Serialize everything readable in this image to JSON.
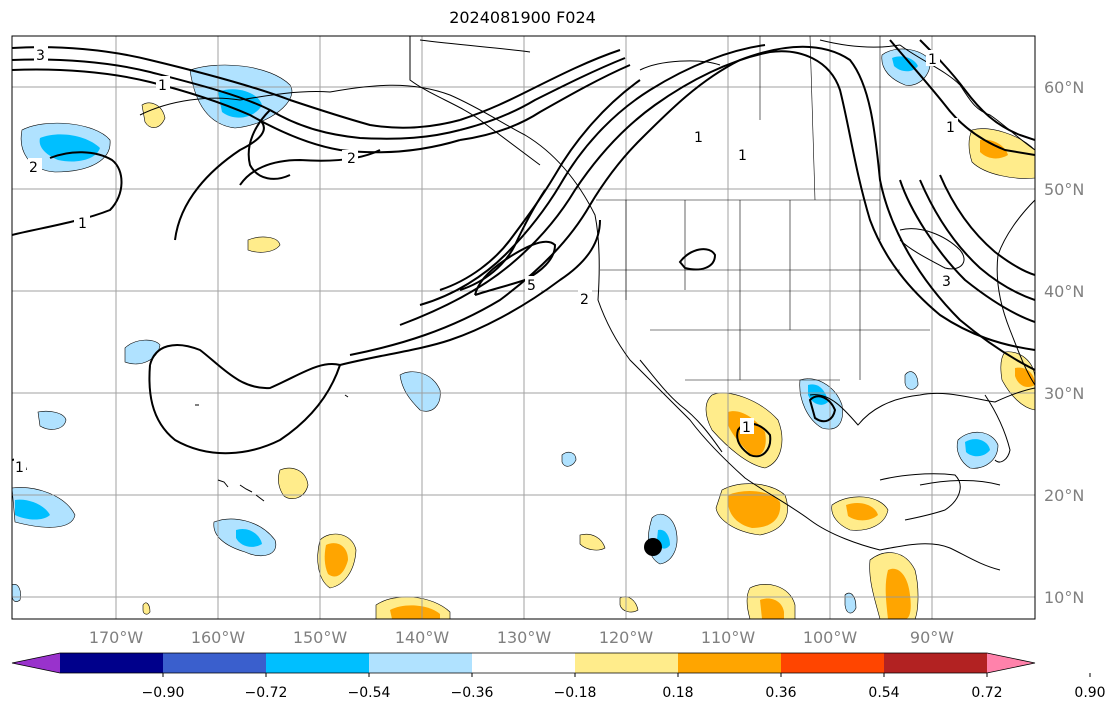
{
  "title": "2024081900 F024",
  "lon_labels": [
    "170°W",
    "160°W",
    "150°W",
    "140°W",
    "130°W",
    "120°W",
    "110°W",
    "100°W",
    "90°W"
  ],
  "lat_labels": [
    "60°N",
    "50°N",
    "40°N",
    "30°N",
    "20°N",
    "10°N"
  ],
  "colorbar": {
    "colors": [
      "#9932cc",
      "#00008b",
      "#3a5fcd",
      "#00bfff",
      "#b0e2ff",
      "#ffffff",
      "#ffec8b",
      "#ffa500",
      "#ff4500",
      "#b22222",
      "#ff82ab"
    ],
    "tick_labels": [
      "−0.90",
      "−0.72",
      "−0.54",
      "−0.36",
      "−0.18",
      "0.18",
      "0.36",
      "0.54",
      "0.72",
      "0.90"
    ]
  },
  "contour_labels": [
    "3",
    "2",
    "1",
    "1",
    "2",
    "5",
    "2",
    "1",
    "1",
    "1",
    "1",
    "3",
    "1",
    "1"
  ],
  "colors": {
    "grid": "#999999",
    "coast": "#000000",
    "axis_label": "#808080"
  }
}
